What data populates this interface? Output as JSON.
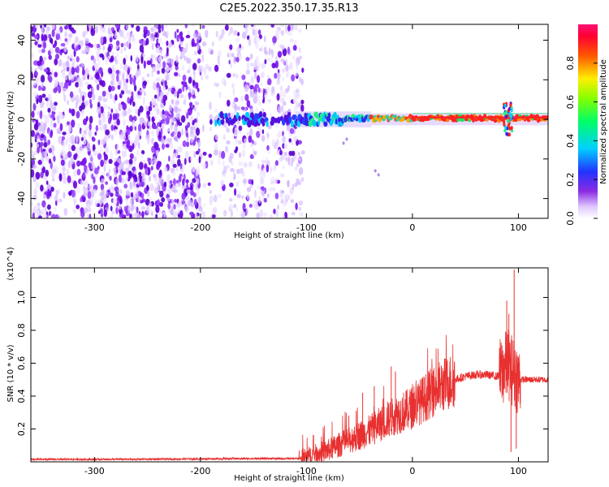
{
  "title": "C2E5.2022.350.17.35.R13",
  "chart_data": [
    {
      "type": "heatmap",
      "xlabel": "Height of straight line (km)",
      "ylabel": "Frequency (Hz)",
      "xlim": [
        -360,
        128
      ],
      "ylim": [
        -50,
        48
      ],
      "xticks": [
        -300,
        -200,
        -100,
        0,
        100
      ],
      "yticks": [
        -40,
        -20,
        0,
        20,
        40
      ],
      "colorbar": {
        "label": "Normalized spectral amplitude",
        "range": [
          0.0,
          1.0
        ],
        "ticks": [
          0.0,
          0.2,
          0.4,
          0.6,
          0.8
        ],
        "colormap": "rainbow (white-purple-blue-cyan-green-yellow-red-pink)"
      },
      "features": {
        "noise_region_x": [
          -360,
          -105
        ],
        "signal_band_center_hz": 0,
        "signal_start_x": -190,
        "peak_x": 90
      }
    },
    {
      "type": "line",
      "xlabel": "Height of straight line (km)",
      "ylabel": "SNR (10 * v/v)",
      "y_multiplier": "(x10^4)",
      "xlim": [
        -360,
        128
      ],
      "ylim": [
        0,
        1.18
      ],
      "xticks": [
        -300,
        -200,
        -100,
        0,
        100
      ],
      "yticks": [
        0.2,
        0.4,
        0.6,
        0.8,
        1.0
      ],
      "color": "#e83030",
      "series": [
        {
          "x": [
            -360,
            -300,
            -250,
            -200,
            -150,
            -105,
            -100,
            -90,
            -80,
            -70,
            -60,
            -50,
            -40,
            -30,
            -20,
            -10,
            0,
            10,
            20,
            30,
            40,
            50,
            60,
            70,
            80,
            85,
            90,
            95,
            100,
            110,
            120,
            128
          ],
          "y": [
            0.015,
            0.015,
            0.016,
            0.018,
            0.02,
            0.02,
            0.03,
            0.05,
            0.07,
            0.1,
            0.13,
            0.16,
            0.19,
            0.23,
            0.27,
            0.3,
            0.33,
            0.38,
            0.43,
            0.47,
            0.5,
            0.52,
            0.53,
            0.53,
            0.52,
            0.55,
            0.6,
            0.55,
            0.5,
            0.5,
            0.5,
            0.5
          ]
        }
      ],
      "spikes": [
        {
          "x": 96,
          "y": 1.17
        },
        {
          "x": 93,
          "y": 0.06
        },
        {
          "x": 89,
          "y": 0.98
        },
        {
          "x": 98,
          "y": 0.08
        },
        {
          "x": 91,
          "y": 0.9
        },
        {
          "x": 86,
          "y": 0.65
        },
        {
          "x": -20,
          "y": 0.58
        },
        {
          "x": -47,
          "y": 0.42
        },
        {
          "x": -53,
          "y": 0.31
        },
        {
          "x": -36,
          "y": 0.46
        },
        {
          "x": -16,
          "y": 0.55
        },
        {
          "x": -60,
          "y": 0.28
        }
      ]
    }
  ]
}
